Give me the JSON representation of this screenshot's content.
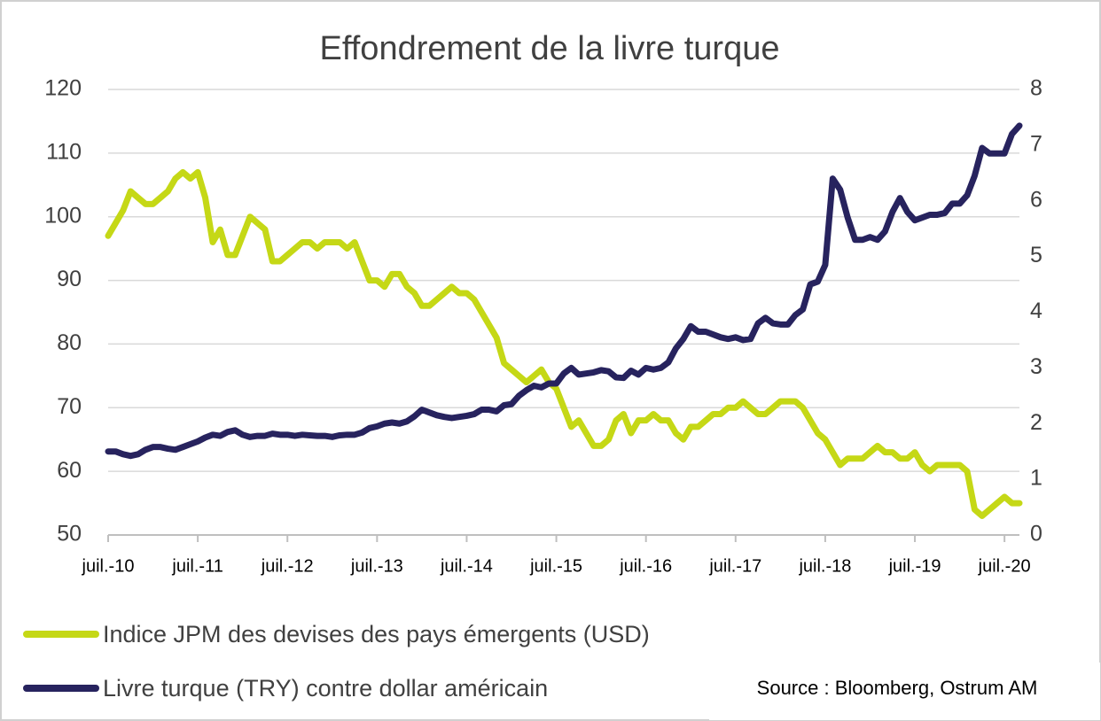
{
  "chart_data": {
    "type": "line",
    "title": "Effondrement de la livre turque",
    "source": "Source : Bloomberg, Ostrum AM",
    "x": [
      "2010-07",
      "2010-08",
      "2010-09",
      "2010-10",
      "2010-11",
      "2010-12",
      "2011-01",
      "2011-02",
      "2011-03",
      "2011-04",
      "2011-05",
      "2011-06",
      "2011-07",
      "2011-08",
      "2011-09",
      "2011-10",
      "2011-11",
      "2011-12",
      "2012-01",
      "2012-02",
      "2012-03",
      "2012-04",
      "2012-05",
      "2012-06",
      "2012-07",
      "2012-08",
      "2012-09",
      "2012-10",
      "2012-11",
      "2012-12",
      "2013-01",
      "2013-02",
      "2013-03",
      "2013-04",
      "2013-05",
      "2013-06",
      "2013-07",
      "2013-08",
      "2013-09",
      "2013-10",
      "2013-11",
      "2013-12",
      "2014-01",
      "2014-02",
      "2014-03",
      "2014-04",
      "2014-05",
      "2014-06",
      "2014-07",
      "2014-08",
      "2014-09",
      "2014-10",
      "2014-11",
      "2014-12",
      "2015-01",
      "2015-02",
      "2015-03",
      "2015-04",
      "2015-05",
      "2015-06",
      "2015-07",
      "2015-08",
      "2015-09",
      "2015-10",
      "2015-11",
      "2015-12",
      "2016-01",
      "2016-02",
      "2016-03",
      "2016-04",
      "2016-05",
      "2016-06",
      "2016-07",
      "2016-08",
      "2016-09",
      "2016-10",
      "2016-11",
      "2016-12",
      "2017-01",
      "2017-02",
      "2017-03",
      "2017-04",
      "2017-05",
      "2017-06",
      "2017-07",
      "2017-08",
      "2017-09",
      "2017-10",
      "2017-11",
      "2017-12",
      "2018-01",
      "2018-02",
      "2018-03",
      "2018-04",
      "2018-05",
      "2018-06",
      "2018-07",
      "2018-08",
      "2018-09",
      "2018-10",
      "2018-11",
      "2018-12",
      "2019-01",
      "2019-02",
      "2019-03",
      "2019-04",
      "2019-05",
      "2019-06",
      "2019-07",
      "2019-08",
      "2019-09",
      "2019-10",
      "2019-11",
      "2019-12",
      "2020-01",
      "2020-02",
      "2020-03",
      "2020-04",
      "2020-05",
      "2020-06",
      "2020-07",
      "2020-08",
      "2020-09"
    ],
    "series": [
      {
        "name": "Indice JPM des devises des pays émergents (USD)",
        "color": "#c5d816",
        "values": [
          97,
          99,
          101,
          104,
          103,
          102,
          102,
          103,
          104,
          106,
          107,
          106,
          107,
          103,
          96,
          98,
          94,
          94,
          97,
          100,
          99,
          98,
          93,
          93,
          94,
          95,
          96,
          96,
          95,
          96,
          96,
          96,
          95,
          96,
          93,
          90,
          90,
          89,
          91,
          91,
          89,
          88,
          86,
          86,
          87,
          88,
          89,
          88,
          88,
          87,
          85,
          83,
          81,
          77,
          76,
          75,
          74,
          75,
          76,
          74,
          73,
          70,
          67,
          68,
          66,
          64,
          64,
          65,
          68,
          69,
          66,
          68,
          68,
          69,
          68,
          68,
          66,
          65,
          67,
          67,
          68,
          69,
          69,
          70,
          70,
          71,
          70,
          69,
          69,
          70,
          71,
          71,
          71,
          70,
          68,
          66,
          65,
          63,
          61,
          62,
          62,
          62,
          63,
          64,
          63,
          63,
          62,
          62,
          63,
          61,
          60,
          61,
          61,
          61,
          61,
          60,
          54,
          53,
          54,
          55,
          56,
          55,
          55
        ]
      },
      {
        "name": "Livre turque (TRY) contre dollar américain",
        "color": "#27235e",
        "axis": "y2",
        "values": [
          1.5,
          1.5,
          1.45,
          1.42,
          1.45,
          1.53,
          1.58,
          1.58,
          1.55,
          1.53,
          1.58,
          1.63,
          1.68,
          1.75,
          1.8,
          1.78,
          1.85,
          1.88,
          1.8,
          1.76,
          1.78,
          1.78,
          1.82,
          1.8,
          1.8,
          1.78,
          1.8,
          1.79,
          1.78,
          1.78,
          1.76,
          1.79,
          1.8,
          1.8,
          1.84,
          1.92,
          1.95,
          2.0,
          2.02,
          2.0,
          2.04,
          2.13,
          2.25,
          2.2,
          2.15,
          2.12,
          2.1,
          2.12,
          2.14,
          2.17,
          2.25,
          2.25,
          2.22,
          2.33,
          2.35,
          2.5,
          2.6,
          2.68,
          2.65,
          2.72,
          2.72,
          2.9,
          3.0,
          2.88,
          2.9,
          2.92,
          2.96,
          2.94,
          2.83,
          2.82,
          2.95,
          2.88,
          3.0,
          2.97,
          3.0,
          3.1,
          3.35,
          3.52,
          3.75,
          3.65,
          3.65,
          3.6,
          3.55,
          3.52,
          3.55,
          3.5,
          3.52,
          3.8,
          3.9,
          3.8,
          3.78,
          3.78,
          3.95,
          4.05,
          4.5,
          4.55,
          4.85,
          6.4,
          6.2,
          5.7,
          5.3,
          5.3,
          5.35,
          5.3,
          5.45,
          5.8,
          6.05,
          5.8,
          5.65,
          5.7,
          5.75,
          5.75,
          5.78,
          5.95,
          5.95,
          6.1,
          6.45,
          6.95,
          6.85,
          6.85,
          6.85,
          7.2,
          7.35
        ]
      }
    ],
    "xlim": [
      "2010-07",
      "2020-09"
    ],
    "xticks": [
      {
        "value": "2010-07",
        "label": "juil.-10"
      },
      {
        "value": "2011-07",
        "label": "juil.-11"
      },
      {
        "value": "2012-07",
        "label": "juil.-12"
      },
      {
        "value": "2013-07",
        "label": "juil.-13"
      },
      {
        "value": "2014-07",
        "label": "juil.-14"
      },
      {
        "value": "2015-07",
        "label": "juil.-15"
      },
      {
        "value": "2016-07",
        "label": "juil.-16"
      },
      {
        "value": "2017-07",
        "label": "juil.-17"
      },
      {
        "value": "2018-07",
        "label": "juil.-18"
      },
      {
        "value": "2019-07",
        "label": "juil.-19"
      },
      {
        "value": "2020-07",
        "label": "juil.-20"
      }
    ],
    "ylim": [
      50,
      120
    ],
    "yticks": [
      50,
      60,
      70,
      80,
      90,
      100,
      110,
      120
    ],
    "y2lim": [
      0,
      8
    ],
    "y2ticks": [
      0,
      1,
      2,
      3,
      4,
      5,
      6,
      7,
      8
    ],
    "grid": true,
    "legend": "bottom"
  }
}
